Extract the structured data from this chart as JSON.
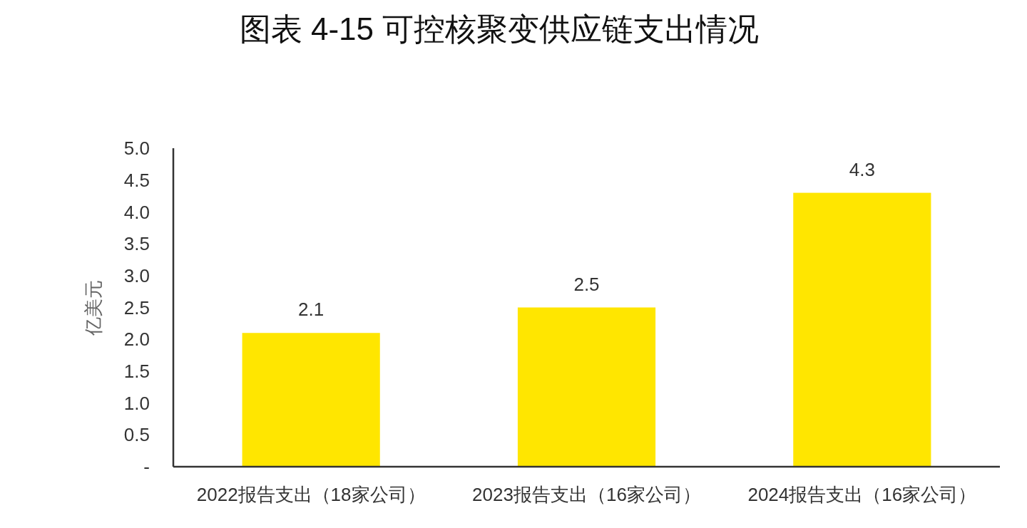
{
  "chart_data": {
    "type": "bar",
    "title": "图表 4-15 可控核聚变供应链支出情况",
    "ylabel": "亿美元",
    "categories": [
      "2022报告支出（18家公司）",
      "2023报告支出（16家公司）",
      "2024报告支出（16家公司）"
    ],
    "values": [
      2.1,
      2.5,
      4.3
    ],
    "color": "#ffe600",
    "ylim": [
      0,
      5
    ],
    "yticks": [
      {
        "value": 0,
        "label": "-"
      },
      0.5,
      {
        "value": 1,
        "label": "1.0"
      },
      1.5,
      {
        "value": 2,
        "label": "2.0"
      },
      2.5,
      {
        "value": 3,
        "label": "3.0"
      },
      3.5,
      {
        "value": 4,
        "label": "4.0"
      },
      4.5,
      {
        "value": 5,
        "label": "5.0"
      }
    ],
    "data_labels": true,
    "grid": false
  }
}
